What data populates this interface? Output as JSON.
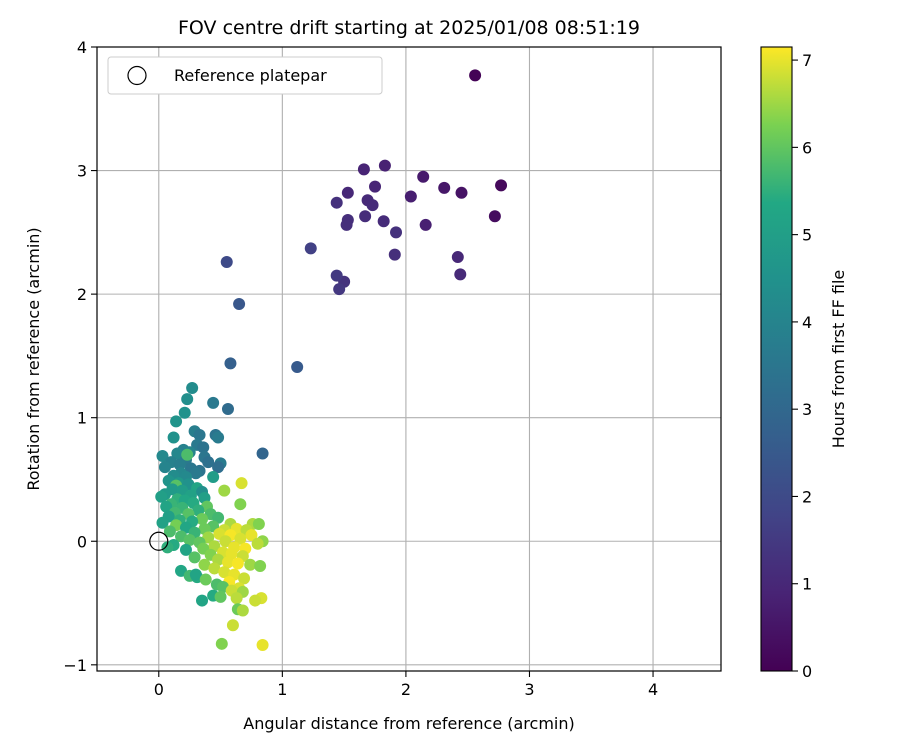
{
  "chart_data": {
    "type": "scatter",
    "title": "FOV centre drift starting at 2025/01/08 08:51:19",
    "xlabel": "Angular distance from reference (arcmin)",
    "ylabel": "Rotation from reference (arcmin)",
    "xlim": [
      -0.5,
      4.55
    ],
    "ylim": [
      -1.05,
      4.0
    ],
    "xticks": [
      0,
      1,
      2,
      3,
      4
    ],
    "yticks": [
      -1,
      0,
      1,
      2,
      3,
      4
    ],
    "xtick_labels": [
      "0",
      "1",
      "2",
      "3",
      "4"
    ],
    "ytick_labels": [
      "−1",
      "0",
      "1",
      "2",
      "3",
      "4"
    ],
    "grid": true,
    "legend": {
      "position": "top-left",
      "entries": [
        {
          "label": "Reference platepar",
          "marker": "open-circle"
        }
      ]
    },
    "reference_point": {
      "x": 0,
      "y": 0
    },
    "colorbar": {
      "label": "Hours from first FF file",
      "colormap": "viridis",
      "range": [
        0,
        7.15
      ],
      "ticks": [
        0,
        1,
        2,
        3,
        4,
        5,
        6,
        7
      ],
      "tick_labels": [
        "0",
        "1",
        "2",
        "3",
        "4",
        "5",
        "6",
        "7"
      ]
    },
    "points": [
      {
        "x": 2.56,
        "y": 3.77,
        "c": 0.05
      },
      {
        "x": 2.77,
        "y": 2.88,
        "c": 0.2
      },
      {
        "x": 2.72,
        "y": 2.63,
        "c": 0.3
      },
      {
        "x": 2.45,
        "y": 2.82,
        "c": 0.45
      },
      {
        "x": 2.31,
        "y": 2.86,
        "c": 0.55
      },
      {
        "x": 2.14,
        "y": 2.95,
        "c": 0.65
      },
      {
        "x": 2.04,
        "y": 2.79,
        "c": 0.75
      },
      {
        "x": 2.16,
        "y": 2.56,
        "c": 0.8
      },
      {
        "x": 1.83,
        "y": 3.04,
        "c": 0.85
      },
      {
        "x": 1.66,
        "y": 3.01,
        "c": 0.9
      },
      {
        "x": 1.75,
        "y": 2.87,
        "c": 0.95
      },
      {
        "x": 1.53,
        "y": 2.82,
        "c": 1.0
      },
      {
        "x": 1.69,
        "y": 2.76,
        "c": 1.05
      },
      {
        "x": 1.73,
        "y": 2.72,
        "c": 1.1
      },
      {
        "x": 1.82,
        "y": 2.59,
        "c": 1.1
      },
      {
        "x": 1.67,
        "y": 2.63,
        "c": 1.15
      },
      {
        "x": 1.53,
        "y": 2.6,
        "c": 1.2
      },
      {
        "x": 1.52,
        "y": 2.56,
        "c": 1.2
      },
      {
        "x": 1.44,
        "y": 2.74,
        "c": 1.25
      },
      {
        "x": 1.92,
        "y": 2.5,
        "c": 1.25
      },
      {
        "x": 2.42,
        "y": 2.3,
        "c": 1.0
      },
      {
        "x": 2.44,
        "y": 2.16,
        "c": 1.05
      },
      {
        "x": 1.91,
        "y": 2.32,
        "c": 1.2
      },
      {
        "x": 1.5,
        "y": 2.1,
        "c": 1.3
      },
      {
        "x": 1.46,
        "y": 2.04,
        "c": 1.45
      },
      {
        "x": 1.44,
        "y": 2.15,
        "c": 1.5
      },
      {
        "x": 1.23,
        "y": 2.37,
        "c": 1.7
      },
      {
        "x": 0.55,
        "y": 2.26,
        "c": 2.0
      },
      {
        "x": 0.65,
        "y": 1.92,
        "c": 2.4
      },
      {
        "x": 0.58,
        "y": 1.44,
        "c": 2.7
      },
      {
        "x": 1.12,
        "y": 1.41,
        "c": 2.5
      },
      {
        "x": 0.84,
        "y": 0.71,
        "c": 2.9
      },
      {
        "x": 0.56,
        "y": 1.07,
        "c": 3.1
      },
      {
        "x": 0.44,
        "y": 1.12,
        "c": 3.6
      },
      {
        "x": 0.27,
        "y": 1.24,
        "c": 4.3
      },
      {
        "x": 0.23,
        "y": 1.15,
        "c": 4.4
      },
      {
        "x": 0.21,
        "y": 1.04,
        "c": 4.5
      },
      {
        "x": 0.14,
        "y": 0.97,
        "c": 4.6
      },
      {
        "x": 0.12,
        "y": 0.84,
        "c": 4.5
      },
      {
        "x": 0.29,
        "y": 0.89,
        "c": 3.8
      },
      {
        "x": 0.33,
        "y": 0.86,
        "c": 3.5
      },
      {
        "x": 0.46,
        "y": 0.86,
        "c": 3.4
      },
      {
        "x": 0.48,
        "y": 0.84,
        "c": 3.7
      },
      {
        "x": 0.31,
        "y": 0.78,
        "c": 3.6
      },
      {
        "x": 0.36,
        "y": 0.76,
        "c": 3.4
      },
      {
        "x": 0.2,
        "y": 0.74,
        "c": 3.9
      },
      {
        "x": 0.25,
        "y": 0.72,
        "c": 4.0
      },
      {
        "x": 0.15,
        "y": 0.71,
        "c": 4.1
      },
      {
        "x": 0.03,
        "y": 0.69,
        "c": 4.2
      },
      {
        "x": 0.37,
        "y": 0.68,
        "c": 3.5
      },
      {
        "x": 0.4,
        "y": 0.64,
        "c": 3.3
      },
      {
        "x": 0.22,
        "y": 0.66,
        "c": 3.6
      },
      {
        "x": 0.1,
        "y": 0.64,
        "c": 3.9
      },
      {
        "x": 0.5,
        "y": 0.63,
        "c": 3.7
      },
      {
        "x": 0.48,
        "y": 0.6,
        "c": 3.2
      },
      {
        "x": 0.05,
        "y": 0.6,
        "c": 4.0
      },
      {
        "x": 0.17,
        "y": 0.62,
        "c": 3.8
      },
      {
        "x": 0.26,
        "y": 0.59,
        "c": 3.5
      },
      {
        "x": 0.33,
        "y": 0.57,
        "c": 3.4
      },
      {
        "x": 0.3,
        "y": 0.55,
        "c": 3.6
      },
      {
        "x": 0.18,
        "y": 0.55,
        "c": 4.1
      },
      {
        "x": 0.12,
        "y": 0.53,
        "c": 4.3
      },
      {
        "x": 0.22,
        "y": 0.52,
        "c": 4.2
      },
      {
        "x": 0.23,
        "y": 0.7,
        "c": 5.8
      },
      {
        "x": 0.44,
        "y": 0.52,
        "c": 4.9
      },
      {
        "x": 0.08,
        "y": 0.49,
        "c": 4.6
      },
      {
        "x": 0.16,
        "y": 0.47,
        "c": 4.7
      },
      {
        "x": 0.24,
        "y": 0.46,
        "c": 4.5
      },
      {
        "x": 0.14,
        "y": 0.45,
        "c": 5.9
      },
      {
        "x": 0.11,
        "y": 0.42,
        "c": 4.8
      },
      {
        "x": 0.19,
        "y": 0.41,
        "c": 4.9
      },
      {
        "x": 0.31,
        "y": 0.43,
        "c": 5.2
      },
      {
        "x": 0.35,
        "y": 0.4,
        "c": 4.4
      },
      {
        "x": 0.05,
        "y": 0.38,
        "c": 4.8
      },
      {
        "x": 0.02,
        "y": 0.36,
        "c": 5.0
      },
      {
        "x": 0.26,
        "y": 0.37,
        "c": 5.1
      },
      {
        "x": 0.15,
        "y": 0.34,
        "c": 5.5
      },
      {
        "x": 0.21,
        "y": 0.33,
        "c": 5.3
      },
      {
        "x": 0.37,
        "y": 0.35,
        "c": 5.0
      },
      {
        "x": 0.53,
        "y": 0.41,
        "c": 6.5
      },
      {
        "x": 0.67,
        "y": 0.47,
        "c": 6.9
      },
      {
        "x": 0.66,
        "y": 0.3,
        "c": 6.3
      },
      {
        "x": 0.1,
        "y": 0.3,
        "c": 5.6
      },
      {
        "x": 0.28,
        "y": 0.31,
        "c": 5.4
      },
      {
        "x": 0.39,
        "y": 0.28,
        "c": 6.0
      },
      {
        "x": 0.06,
        "y": 0.28,
        "c": 5.2
      },
      {
        "x": 0.19,
        "y": 0.27,
        "c": 5.6
      },
      {
        "x": 0.32,
        "y": 0.25,
        "c": 5.5
      },
      {
        "x": 0.13,
        "y": 0.23,
        "c": 5.7
      },
      {
        "x": 0.24,
        "y": 0.22,
        "c": 5.9
      },
      {
        "x": 0.42,
        "y": 0.22,
        "c": 5.8
      },
      {
        "x": 0.08,
        "y": 0.2,
        "c": 5.0
      },
      {
        "x": 0.48,
        "y": 0.19,
        "c": 5.7
      },
      {
        "x": 0.35,
        "y": 0.18,
        "c": 6.1
      },
      {
        "x": 0.17,
        "y": 0.17,
        "c": 5.5
      },
      {
        "x": 0.27,
        "y": 0.16,
        "c": 5.4
      },
      {
        "x": 0.58,
        "y": 0.14,
        "c": 6.6
      },
      {
        "x": 0.76,
        "y": 0.14,
        "c": 6.6
      },
      {
        "x": 0.81,
        "y": 0.14,
        "c": 6.3
      },
      {
        "x": 0.14,
        "y": 0.13,
        "c": 6.2
      },
      {
        "x": 0.44,
        "y": 0.12,
        "c": 5.9
      },
      {
        "x": 0.03,
        "y": 0.15,
        "c": 5.1
      },
      {
        "x": 0.22,
        "y": 0.11,
        "c": 5.3
      },
      {
        "x": 0.37,
        "y": 0.1,
        "c": 6.1
      },
      {
        "x": 0.53,
        "y": 0.09,
        "c": 6.8
      },
      {
        "x": 0.63,
        "y": 0.1,
        "c": 7.0
      },
      {
        "x": 0.71,
        "y": 0.09,
        "c": 6.7
      },
      {
        "x": 0.09,
        "y": 0.08,
        "c": 5.8
      },
      {
        "x": 0.29,
        "y": 0.07,
        "c": 5.6
      },
      {
        "x": 0.49,
        "y": 0.06,
        "c": 6.9
      },
      {
        "x": 0.58,
        "y": 0.05,
        "c": 7.1
      },
      {
        "x": 0.75,
        "y": 0.05,
        "c": 7.0
      },
      {
        "x": 0.18,
        "y": 0.04,
        "c": 5.8
      },
      {
        "x": 0.4,
        "y": 0.03,
        "c": 6.5
      },
      {
        "x": 0.66,
        "y": 0.02,
        "c": 6.9
      },
      {
        "x": 0.84,
        "y": 0.0,
        "c": 6.4
      },
      {
        "x": 0.8,
        "y": -0.02,
        "c": 6.7
      },
      {
        "x": 0.25,
        "y": 0.01,
        "c": 5.9
      },
      {
        "x": 0.54,
        "y": 0.0,
        "c": 6.8
      },
      {
        "x": 0.33,
        "y": -0.01,
        "c": 6.0
      },
      {
        "x": 0.12,
        "y": -0.03,
        "c": 5.4
      },
      {
        "x": 0.45,
        "y": -0.04,
        "c": 6.6
      },
      {
        "x": 0.61,
        "y": -0.05,
        "c": 7.0
      },
      {
        "x": 0.7,
        "y": -0.06,
        "c": 7.1
      },
      {
        "x": 0.36,
        "y": -0.06,
        "c": 6.2
      },
      {
        "x": 0.07,
        "y": -0.05,
        "c": 5.5
      },
      {
        "x": 0.22,
        "y": -0.07,
        "c": 5.2
      },
      {
        "x": 0.52,
        "y": -0.09,
        "c": 6.9
      },
      {
        "x": 0.59,
        "y": -0.1,
        "c": 7.0
      },
      {
        "x": 0.42,
        "y": -0.11,
        "c": 6.3
      },
      {
        "x": 0.68,
        "y": -0.12,
        "c": 6.8
      },
      {
        "x": 0.29,
        "y": -0.13,
        "c": 5.9
      },
      {
        "x": 0.48,
        "y": -0.15,
        "c": 6.6
      },
      {
        "x": 0.56,
        "y": -0.17,
        "c": 7.0
      },
      {
        "x": 0.64,
        "y": -0.18,
        "c": 7.1
      },
      {
        "x": 0.37,
        "y": -0.19,
        "c": 6.4
      },
      {
        "x": 0.18,
        "y": -0.24,
        "c": 5.3
      },
      {
        "x": 0.74,
        "y": -0.19,
        "c": 6.5
      },
      {
        "x": 0.82,
        "y": -0.2,
        "c": 6.3
      },
      {
        "x": 0.45,
        "y": -0.22,
        "c": 6.7
      },
      {
        "x": 0.53,
        "y": -0.25,
        "c": 6.9
      },
      {
        "x": 0.61,
        "y": -0.27,
        "c": 7.0
      },
      {
        "x": 0.25,
        "y": -0.28,
        "c": 5.7
      },
      {
        "x": 0.31,
        "y": -0.29,
        "c": 5.4
      },
      {
        "x": 0.3,
        "y": -0.27,
        "c": 5.2
      },
      {
        "x": 0.69,
        "y": -0.3,
        "c": 6.8
      },
      {
        "x": 0.38,
        "y": -0.31,
        "c": 6.1
      },
      {
        "x": 0.57,
        "y": -0.33,
        "c": 7.1
      },
      {
        "x": 0.47,
        "y": -0.35,
        "c": 5.8
      },
      {
        "x": 0.52,
        "y": -0.37,
        "c": 5.9
      },
      {
        "x": 0.65,
        "y": -0.38,
        "c": 6.9
      },
      {
        "x": 0.59,
        "y": -0.4,
        "c": 6.8
      },
      {
        "x": 0.68,
        "y": -0.41,
        "c": 6.5
      },
      {
        "x": 0.44,
        "y": -0.44,
        "c": 5.4
      },
      {
        "x": 0.5,
        "y": -0.45,
        "c": 6.0
      },
      {
        "x": 0.63,
        "y": -0.46,
        "c": 6.7
      },
      {
        "x": 0.83,
        "y": -0.46,
        "c": 6.9
      },
      {
        "x": 0.78,
        "y": -0.48,
        "c": 6.8
      },
      {
        "x": 0.35,
        "y": -0.48,
        "c": 5.2
      },
      {
        "x": 0.64,
        "y": -0.55,
        "c": 6.1
      },
      {
        "x": 0.68,
        "y": -0.56,
        "c": 6.6
      },
      {
        "x": 0.6,
        "y": -0.68,
        "c": 6.8
      },
      {
        "x": 0.51,
        "y": -0.83,
        "c": 6.3
      },
      {
        "x": 0.84,
        "y": -0.84,
        "c": 7.0
      }
    ]
  }
}
